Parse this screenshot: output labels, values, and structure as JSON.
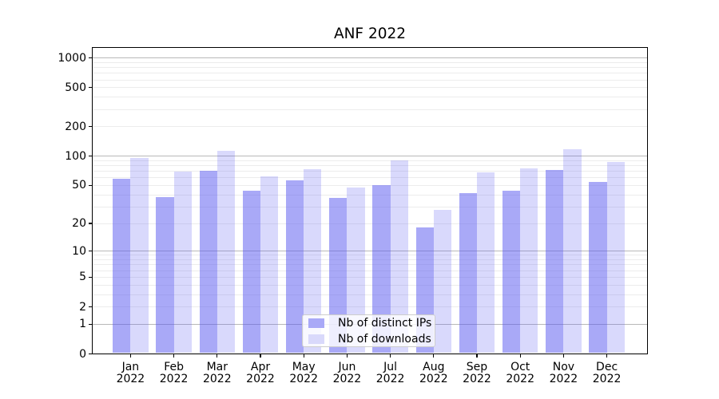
{
  "chart_data": {
    "type": "bar",
    "title": "ANF 2022",
    "categories": [
      "Jan",
      "Feb",
      "Mar",
      "Apr",
      "May",
      "Jun",
      "Jul",
      "Aug",
      "Sep",
      "Oct",
      "Nov",
      "Dec"
    ],
    "x_tick_year": "2022",
    "series": [
      {
        "name": "Nb of distinct IPs",
        "color": "rgba(90,90,240,0.52)",
        "swatch_color": "#a9a9f7",
        "values": [
          59,
          38,
          71,
          44,
          57,
          37,
          50,
          18,
          42,
          44,
          72,
          54
        ]
      },
      {
        "name": "Nb of downloads",
        "color": "rgba(90,90,240,0.23)",
        "swatch_color": "#d9d9fb",
        "values": [
          95,
          70,
          114,
          62,
          74,
          48,
          90,
          28,
          68,
          75,
          117,
          88
        ]
      }
    ],
    "xlabel": "",
    "ylabel": "",
    "yscale": "log1p",
    "ylim": [
      0,
      1290
    ],
    "yticks": [
      0,
      1,
      2,
      5,
      10,
      20,
      50,
      100,
      200,
      500,
      1000
    ],
    "grid": {
      "major_values": [
        1,
        10,
        100,
        1000
      ],
      "minor_digits": [
        2,
        3,
        4,
        5,
        6,
        7,
        8,
        9
      ],
      "minor_decades": [
        1,
        10,
        100
      ]
    },
    "legend_position": "lower-center"
  },
  "colors": {
    "background": "#ffffff",
    "axis": "#000000",
    "text": "#000000",
    "grid_major": "#b9b9b9",
    "grid_minor": "#ececec",
    "legend_border": "#cccccc",
    "legend_background": "rgba(255,255,255,0.8)"
  }
}
